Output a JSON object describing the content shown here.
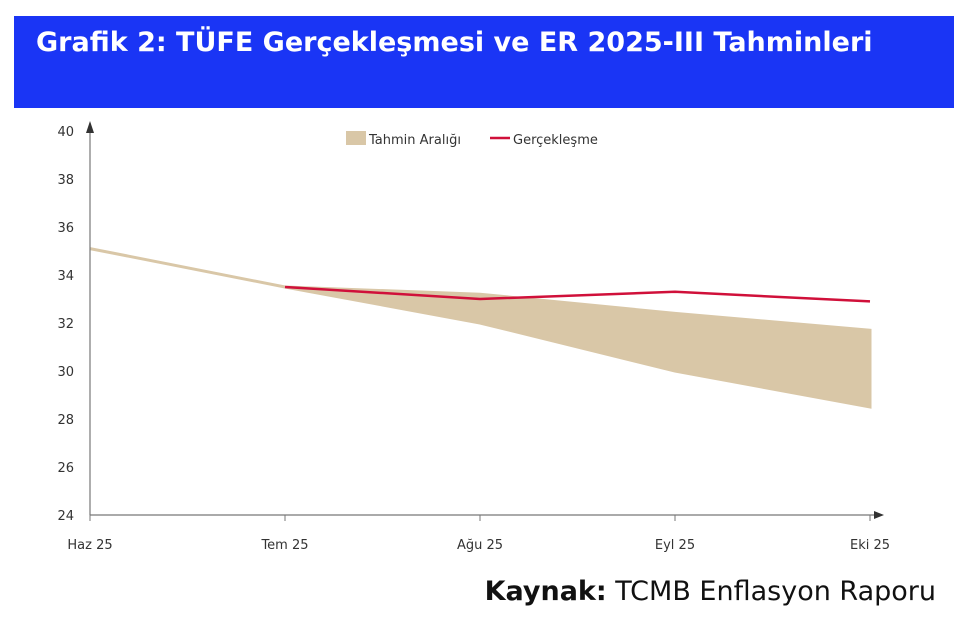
{
  "title": "Grafik 2: TÜFE Gerçekleşmesi ve ER 2025-III Tahminleri",
  "source": {
    "label": "Kaynak:",
    "text": " TCMB Enflasyon Raporu"
  },
  "chart_data": {
    "type": "area",
    "categories": [
      "Haz 25",
      "Tem 25",
      "Ağu 25",
      "Eyl 25",
      "Eki 25"
    ],
    "ylim": [
      24,
      40
    ],
    "yticks": [
      24,
      26,
      28,
      30,
      32,
      34,
      36,
      38,
      40
    ],
    "legend_position": "top-center",
    "series": [
      {
        "name": "Tahmin Aralığı",
        "type": "band",
        "color": "#d9c7a7",
        "lower": [
          35.1,
          33.5,
          32.0,
          30.0,
          28.5
        ],
        "upper": [
          35.1,
          33.5,
          33.2,
          32.4,
          31.7
        ]
      },
      {
        "name": "Gerçekleşme",
        "type": "line",
        "color": "#d0103a",
        "values": [
          null,
          33.5,
          33.0,
          33.3,
          32.9
        ]
      }
    ]
  }
}
